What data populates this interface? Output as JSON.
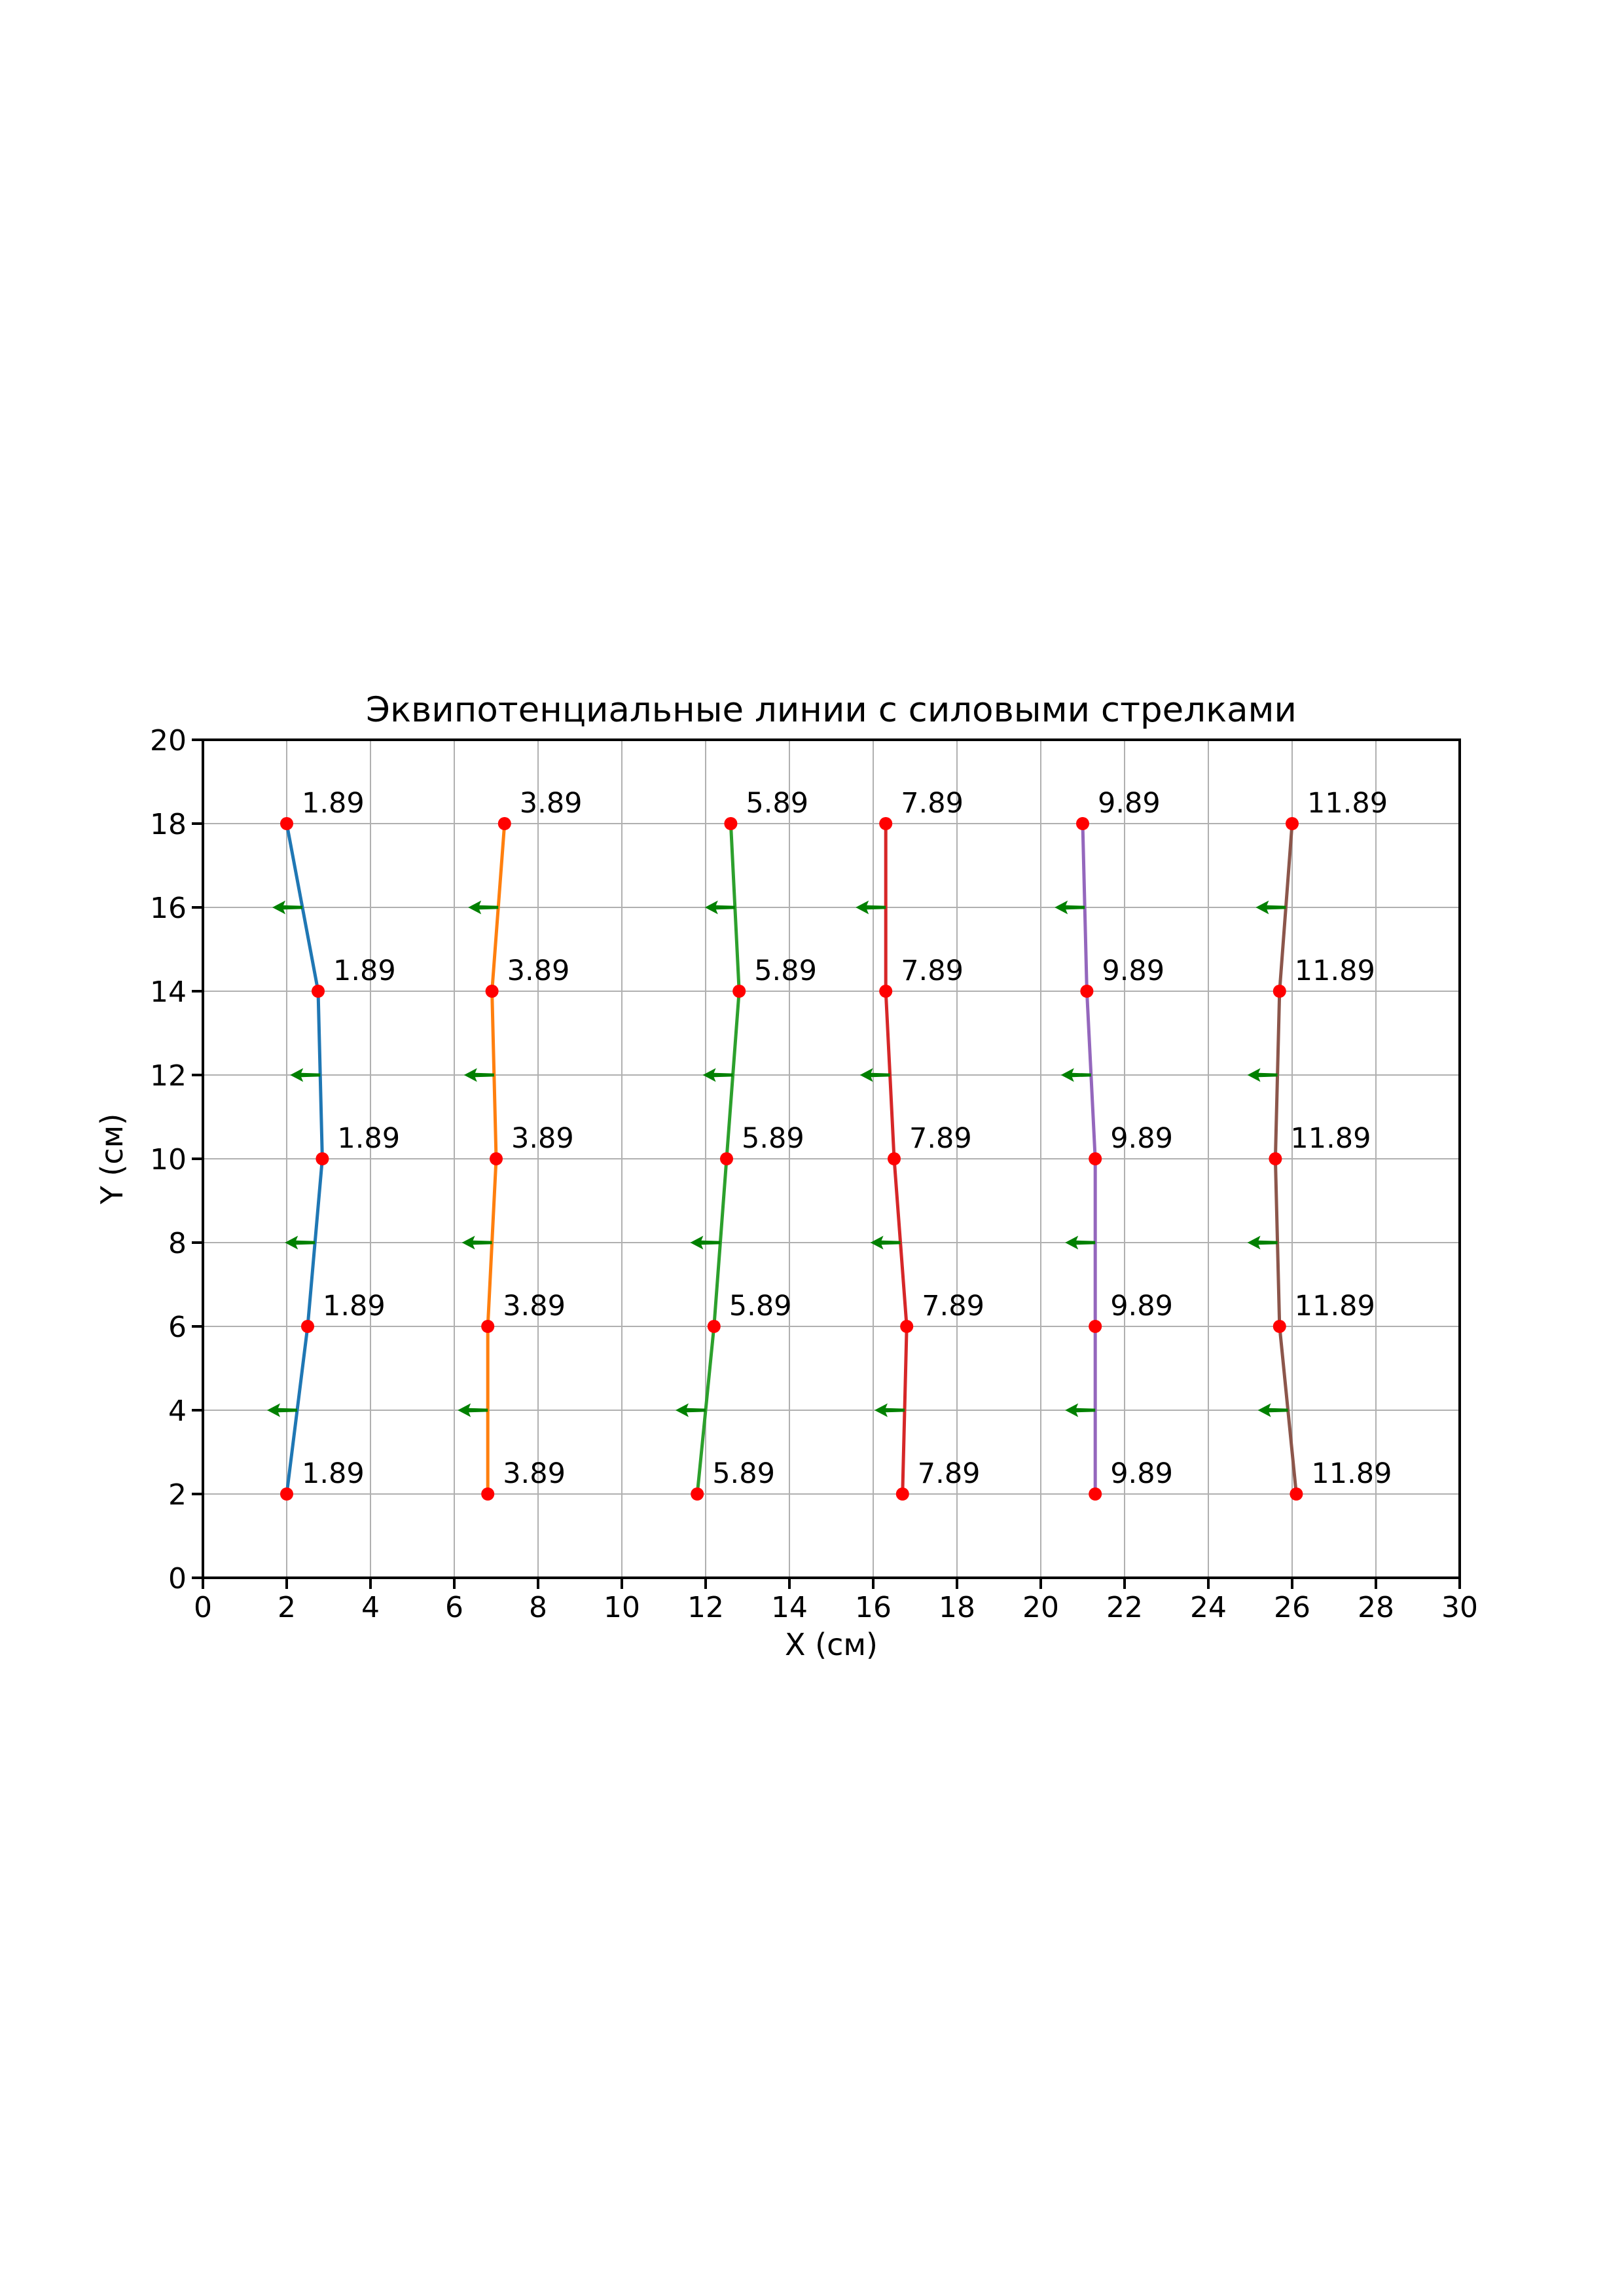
{
  "page": {
    "background": "#ffffff"
  },
  "chart_data": {
    "type": "line",
    "title": "Эквипотенциальные линии с силовыми стрелками",
    "xlabel": "X (см)",
    "ylabel": "Y (см)",
    "xlim": [
      0,
      30
    ],
    "ylim": [
      0,
      20
    ],
    "x_ticks": [
      0,
      2,
      4,
      6,
      8,
      10,
      12,
      14,
      16,
      18,
      20,
      22,
      24,
      26,
      28,
      30
    ],
    "y_ticks": [
      0,
      2,
      4,
      6,
      8,
      10,
      12,
      14,
      16,
      18,
      20
    ],
    "grid": true,
    "grid_color": "#b0b0b0",
    "axis_color": "#000000",
    "marker_color": "#ff0000",
    "arrow_color": "#008000",
    "arrow_direction": "left",
    "arrow_length_cm": 0.72,
    "arrow_rows_y": [
      4,
      8,
      12,
      16
    ],
    "point_y": [
      2,
      6,
      10,
      14,
      18
    ],
    "series": [
      {
        "label": "1.89",
        "color": "#1f77b4",
        "x": [
          2.0,
          2.5,
          2.85,
          2.75,
          2.0
        ]
      },
      {
        "label": "3.89",
        "color": "#ff7f0e",
        "x": [
          6.8,
          6.8,
          7.0,
          6.9,
          7.2
        ]
      },
      {
        "label": "5.89",
        "color": "#2ca02c",
        "x": [
          11.8,
          12.2,
          12.5,
          12.8,
          12.6
        ]
      },
      {
        "label": "7.89",
        "color": "#d62728",
        "x": [
          16.7,
          16.8,
          16.5,
          16.3,
          16.3
        ]
      },
      {
        "label": "9.89",
        "color": "#9467bd",
        "x": [
          21.3,
          21.3,
          21.3,
          21.1,
          21.0
        ]
      },
      {
        "label": "11.89",
        "color": "#8c564b",
        "x": [
          26.1,
          25.7,
          25.6,
          25.7,
          26.0
        ]
      }
    ]
  }
}
